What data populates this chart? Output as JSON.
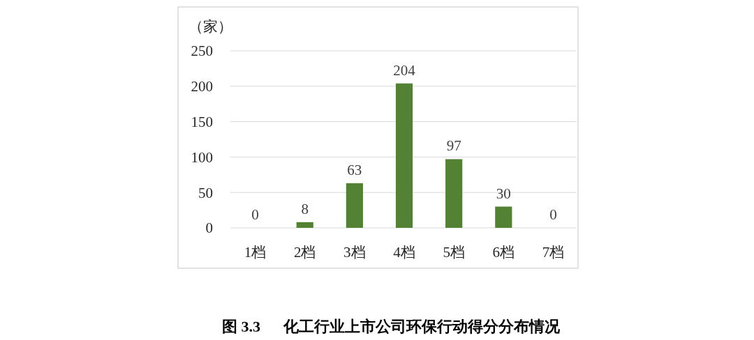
{
  "chart_data": {
    "type": "bar",
    "title": "图 3.3      化工行业上市公司环保行动得分分布情况",
    "ylabel": "（家）",
    "categories": [
      "1档",
      "2档",
      "3档",
      "4档",
      "5档",
      "6档",
      "7档"
    ],
    "values": [
      0,
      8,
      63,
      204,
      97,
      30,
      0
    ],
    "color": "#548235",
    "ylim": [
      0,
      250
    ],
    "yticks": [
      0,
      50,
      100,
      150,
      200,
      250
    ],
    "grid": "y",
    "data_labels": true
  }
}
